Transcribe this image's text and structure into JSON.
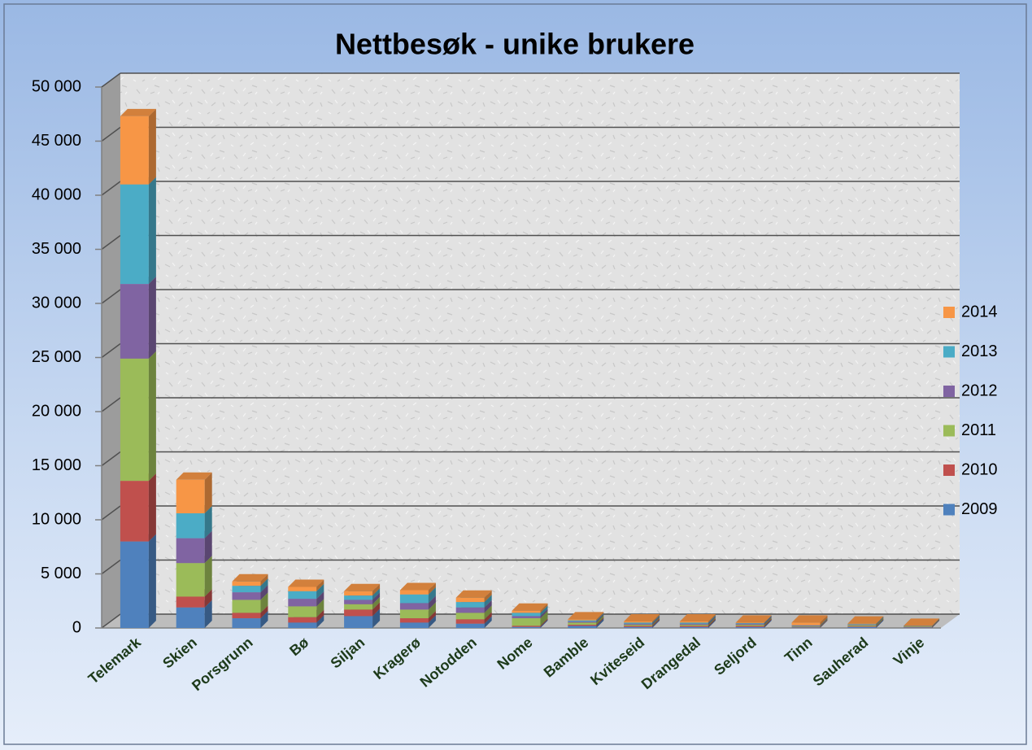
{
  "chart_data": {
    "type": "bar3d_stacked",
    "title": "Nettbesøk - unike brukere",
    "categories": [
      "Telemark",
      "Skien",
      "Porsgrunn",
      "Bø",
      "Siljan",
      "Kragerø",
      "Notodden",
      "Nome",
      "Bamble",
      "Kviteseid",
      "Drangedal",
      "Seljord",
      "Tinn",
      "Sauherad",
      "Vinje"
    ],
    "series": [
      {
        "name": "2009",
        "color": "#4f81bd",
        "values": [
          8000,
          1900,
          900,
          500,
          1100,
          500,
          400,
          100,
          200,
          100,
          100,
          100,
          50,
          100,
          50
        ]
      },
      {
        "name": "2010",
        "color": "#c0504d",
        "values": [
          5600,
          1000,
          500,
          500,
          600,
          400,
          400,
          100,
          100,
          100,
          100,
          100,
          50,
          50,
          50
        ]
      },
      {
        "name": "2011",
        "color": "#9bbb59",
        "values": [
          11300,
          3100,
          1200,
          1000,
          500,
          800,
          600,
          700,
          200,
          100,
          100,
          100,
          50,
          100,
          50
        ]
      },
      {
        "name": "2012",
        "color": "#8064a2",
        "values": [
          6900,
          2300,
          700,
          700,
          400,
          600,
          500,
          200,
          100,
          100,
          100,
          100,
          50,
          50,
          20
        ]
      },
      {
        "name": "2013",
        "color": "#4bacc6",
        "values": [
          9200,
          2300,
          600,
          700,
          400,
          800,
          500,
          300,
          100,
          100,
          100,
          50,
          50,
          50,
          20
        ]
      },
      {
        "name": "2014",
        "color": "#f79646",
        "values": [
          6300,
          3100,
          400,
          400,
          400,
          400,
          400,
          200,
          100,
          100,
          100,
          50,
          250,
          50,
          10
        ]
      }
    ],
    "ylim": [
      0,
      50000
    ],
    "yticks": [
      0,
      {
        "value": 5000,
        "label": "5 000"
      },
      {
        "value": 10000,
        "label": "10 000"
      },
      {
        "value": 15000,
        "label": "15 000"
      },
      {
        "value": 20000,
        "label": "20 000"
      },
      {
        "value": 25000,
        "label": "25 000"
      },
      {
        "value": 30000,
        "label": "30 000"
      },
      {
        "value": 35000,
        "label": "35 000"
      },
      {
        "value": 40000,
        "label": "40 000"
      },
      {
        "value": 45000,
        "label": "45 000"
      },
      {
        "value": 50000,
        "label": "50 000"
      }
    ],
    "grid": true,
    "legend": "right"
  }
}
